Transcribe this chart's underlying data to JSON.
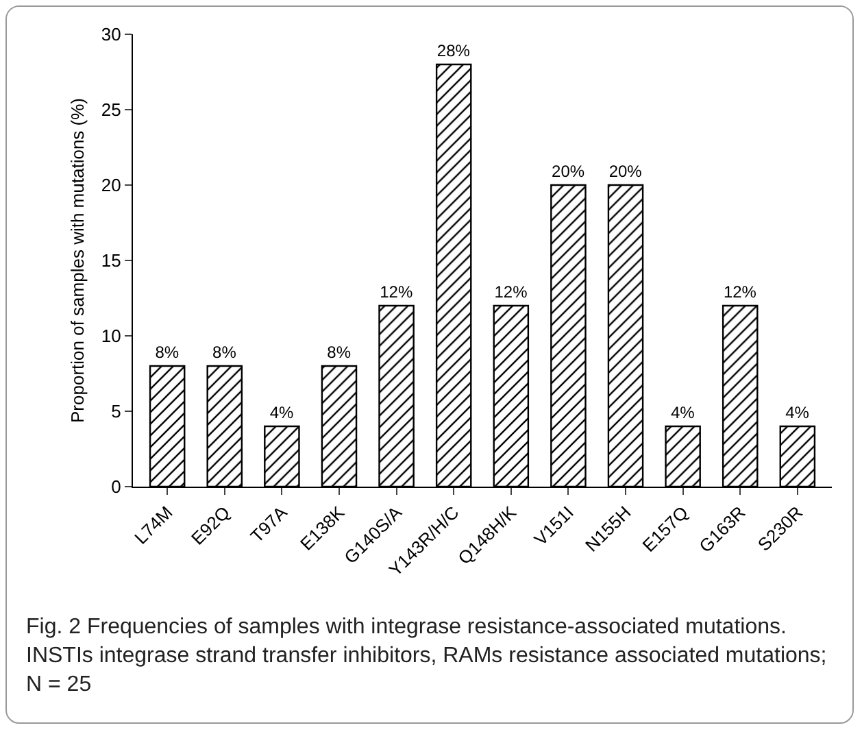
{
  "chart_data": {
    "type": "bar",
    "categories": [
      "L74M",
      "E92Q",
      "T97A",
      "E138K",
      "G140S/A",
      "Y143R/H/C",
      "Q148H/K",
      "V151I",
      "N155H",
      "E157Q",
      "G163R",
      "S230R"
    ],
    "values": [
      8,
      8,
      4,
      8,
      12,
      28,
      12,
      20,
      20,
      4,
      12,
      4
    ],
    "value_labels": [
      "8%",
      "8%",
      "4%",
      "8%",
      "12%",
      "28%",
      "12%",
      "20%",
      "20%",
      "4%",
      "12%",
      "4%"
    ],
    "color": "#000000",
    "ylabel": "Proportion of samples with mutations (%)",
    "ylim": [
      0,
      30
    ],
    "yticks": [
      0,
      5,
      10,
      15,
      20,
      25,
      30
    ],
    "grid": false,
    "legend": false,
    "annotations": [
      "Fig. 2  Frequencies of samples with integrase resistance-associated mutations. INSTIs integrase strand transfer inhibitors, RAMs resistance associated mutations; N = 25"
    ]
  }
}
